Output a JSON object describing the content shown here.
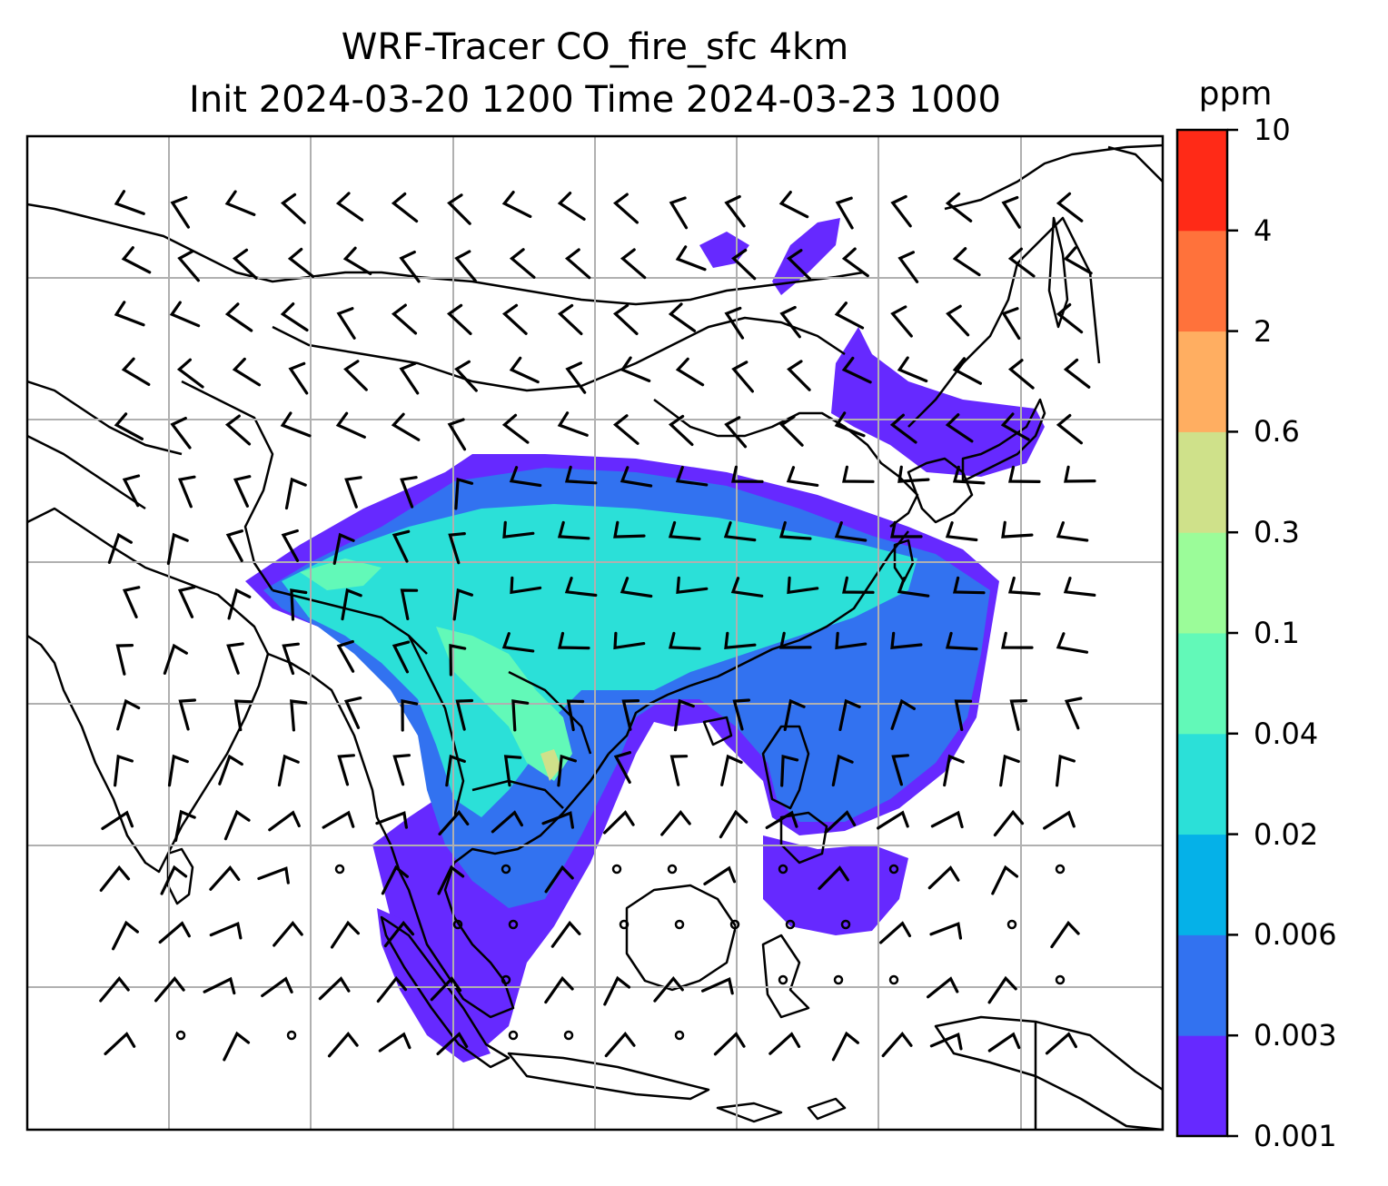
{
  "title": {
    "line1": "WRF-Tracer CO_fire_sfc 4km",
    "line2": "Init 2024-03-20 1200 Time 2024-03-23 1000"
  },
  "colorbar": {
    "unit": "ppm",
    "ticks": [
      "0.001",
      "0.003",
      "0.006",
      "0.02",
      "0.04",
      "0.1",
      "0.3",
      "0.6",
      "2",
      "4",
      "10"
    ],
    "colors": [
      "#6629ff",
      "#3272f0",
      "#05b1e8",
      "#2be0d8",
      "#62f9b8",
      "#9bfc99",
      "#cfe18a",
      "#ffae61",
      "#ff723b",
      "#ff2a17"
    ]
  },
  "map": {
    "gridlines": true,
    "fill_colors": {
      "level1": "#6629ff",
      "level2": "#3272f0",
      "level4": "#2be0d8",
      "level5": "#62f9b8",
      "level7": "#cfe18a"
    },
    "coastline_color": "#000000",
    "grid_color": "#b0b0b0"
  }
}
